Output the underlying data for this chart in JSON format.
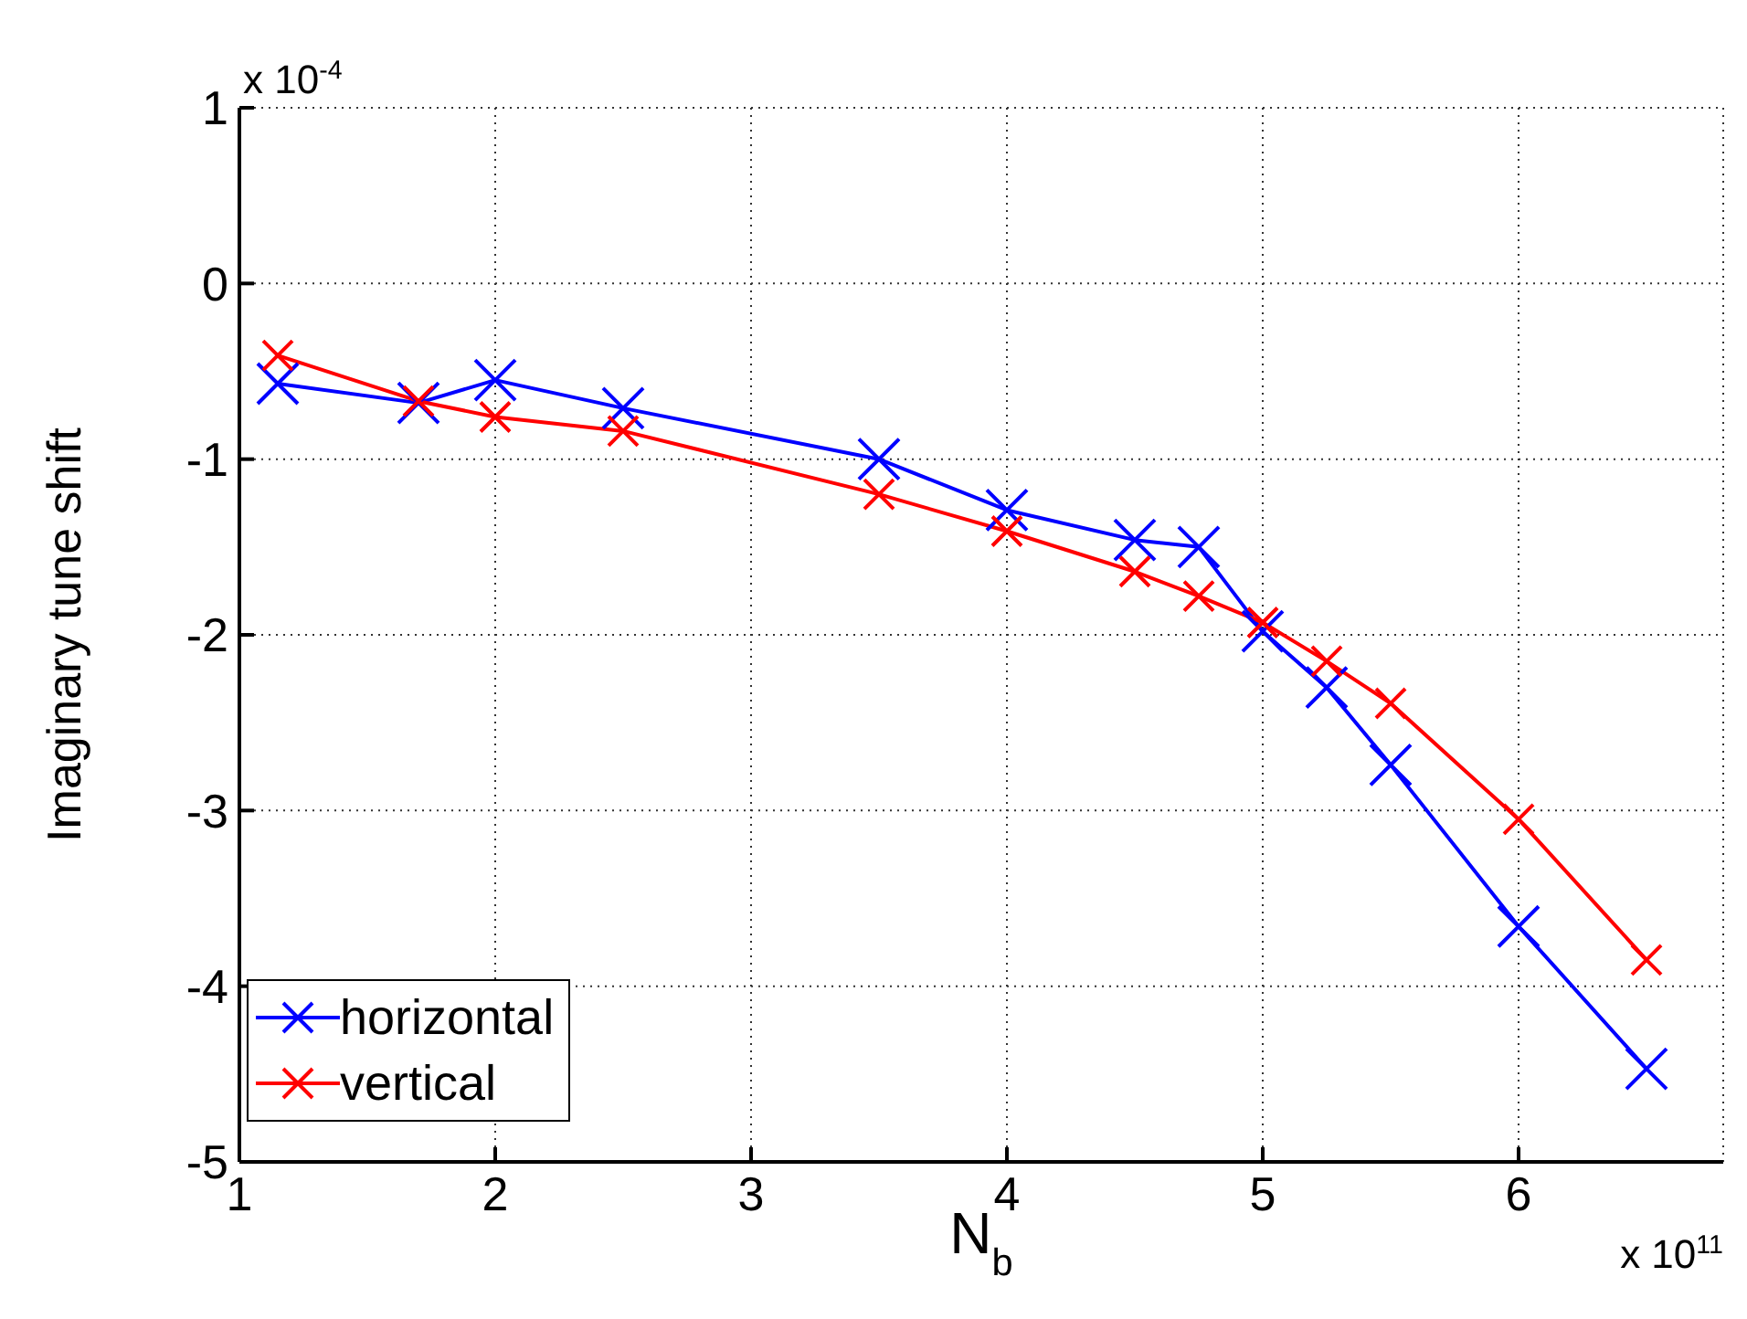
{
  "chart_data": {
    "type": "line",
    "xlabel": "N$_{b}$",
    "ylabel": "Imaginary tune shift",
    "x": [
      1.15,
      1.7,
      2,
      2.5,
      3.5,
      4,
      4.5,
      4.75,
      5,
      5.25,
      5.5,
      6,
      6.5
    ],
    "series": [
      {
        "name": "horizontal",
        "color": "#0000ff",
        "values": [
          -0.57,
          -0.68,
          -0.55,
          -0.71,
          -1.0,
          -1.29,
          -1.46,
          -1.5,
          -1.98,
          -2.3,
          -2.74,
          -3.66,
          -4.47
        ]
      },
      {
        "name": "vertical",
        "color": "#ff0000",
        "values": [
          -0.41,
          -0.67,
          -0.76,
          -0.84,
          -1.2,
          -1.41,
          -1.64,
          -1.78,
          -1.93,
          -2.15,
          -2.39,
          -3.05,
          -3.85
        ]
      }
    ],
    "xlim": [
      1,
      6.8
    ],
    "xticks": [
      1,
      2,
      3,
      4,
      5,
      6
    ],
    "ylim": [
      -5,
      1
    ],
    "yticks": [
      -5,
      -4,
      -3,
      -2,
      -1,
      0,
      1
    ],
    "annotations": [
      "x 10$^{-4}$",
      "x 10$^{11}$"
    ],
    "grid": true,
    "legend": "bottom left",
    "marker": "cross",
    "line_style": "solid"
  }
}
